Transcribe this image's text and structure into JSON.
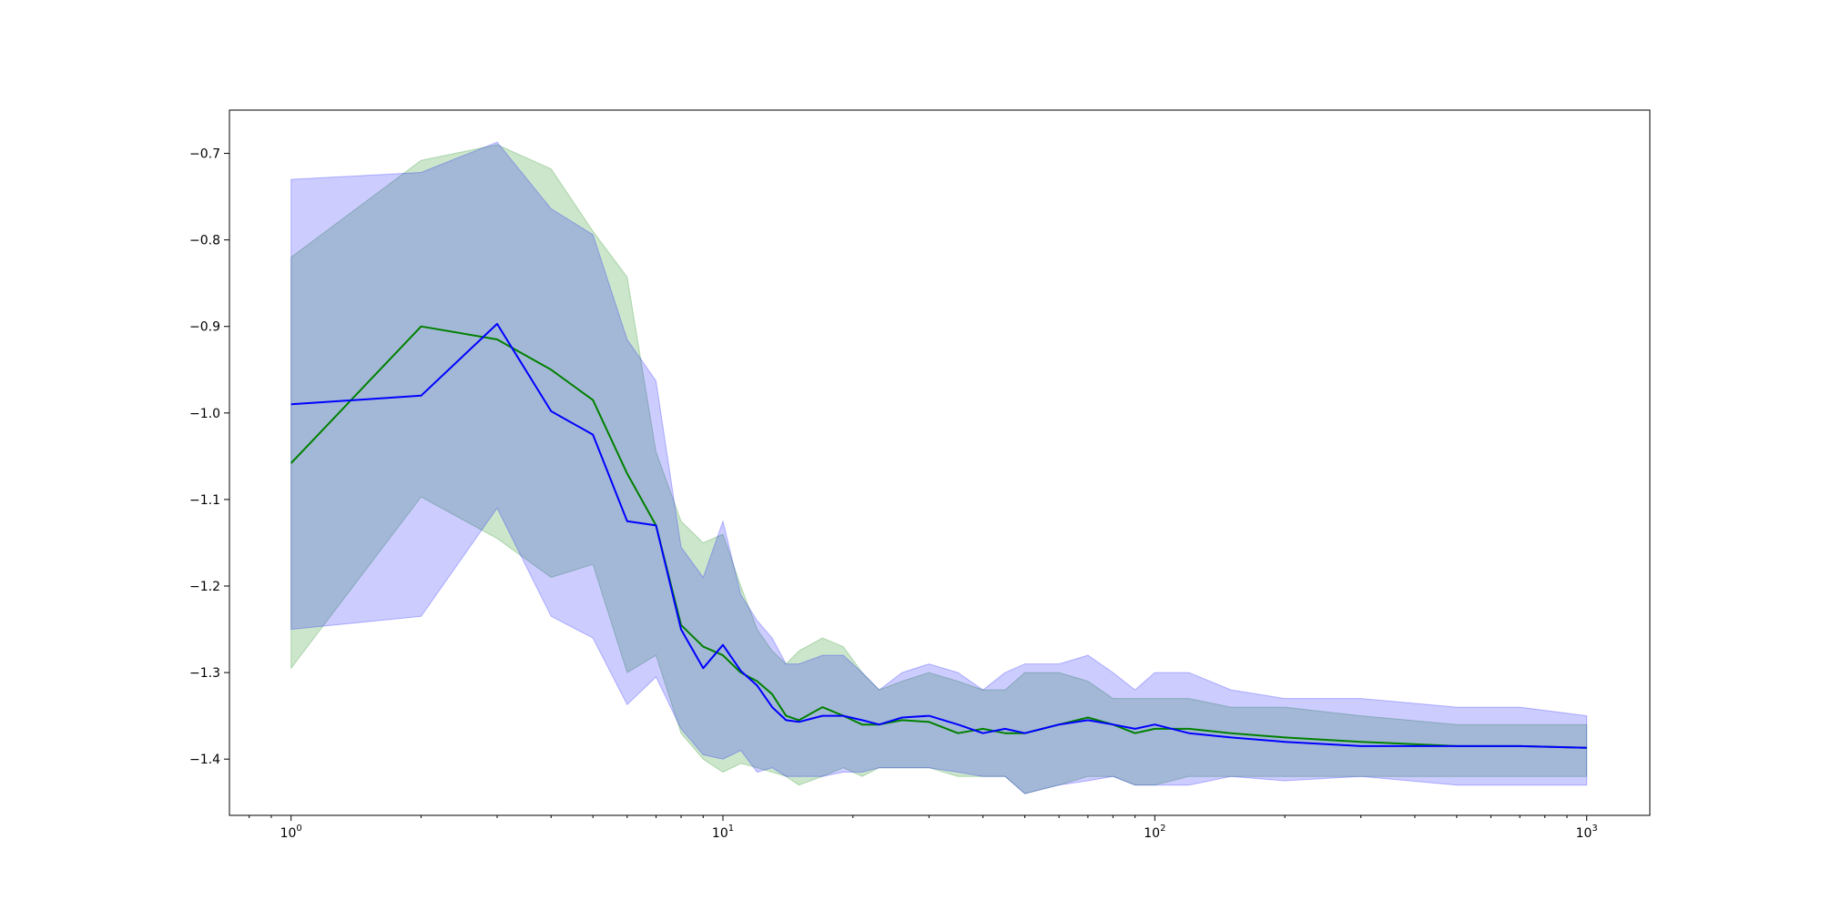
{
  "chart_data": {
    "type": "line",
    "x_scale": "log",
    "xlim": [
      0.72,
      1400
    ],
    "ylim": [
      -1.465,
      -0.65
    ],
    "grid": false,
    "legend": "none",
    "x_major_ticks": [
      1,
      10,
      100,
      1000
    ],
    "x_tick_labels": [
      {
        "base": "10",
        "exp": "0"
      },
      {
        "base": "10",
        "exp": "1"
      },
      {
        "base": "10",
        "exp": "2"
      },
      {
        "base": "10",
        "exp": "3"
      }
    ],
    "y_ticks": [
      -0.7,
      -0.8,
      -0.9,
      -1.0,
      -1.1,
      -1.2,
      -1.3,
      -1.4
    ],
    "y_tick_labels": [
      "−0.7",
      "−0.8",
      "−0.9",
      "−1.0",
      "−1.1",
      "−1.2",
      "−1.3",
      "−1.4"
    ],
    "colors": {
      "green_line": "#008000",
      "blue_line": "#0000ff",
      "green_band": "#008000",
      "blue_band": "#0000ff"
    },
    "series": [
      {
        "color": "green",
        "x": [
          1,
          2,
          3,
          4,
          5,
          6,
          7,
          8,
          9,
          10,
          11,
          12,
          13,
          14,
          15,
          17,
          19,
          21,
          23,
          26,
          30,
          35,
          40,
          45,
          50,
          60,
          70,
          80,
          90,
          100,
          120,
          150,
          200,
          300,
          500,
          700,
          1000
        ],
        "y": [
          -1.058,
          -0.9,
          -0.915,
          -0.95,
          -0.985,
          -1.07,
          -1.13,
          -1.245,
          -1.27,
          -1.28,
          -1.3,
          -1.31,
          -1.325,
          -1.35,
          -1.355,
          -1.34,
          -1.35,
          -1.36,
          -1.36,
          -1.355,
          -1.357,
          -1.37,
          -1.365,
          -1.37,
          -1.37,
          -1.36,
          -1.352,
          -1.36,
          -1.37,
          -1.365,
          -1.365,
          -1.37,
          -1.375,
          -1.38,
          -1.385,
          -1.385,
          -1.387
        ],
        "lower": [
          -1.295,
          -1.097,
          -1.145,
          -1.19,
          -1.175,
          -1.3,
          -1.28,
          -1.37,
          -1.4,
          -1.415,
          -1.405,
          -1.41,
          -1.415,
          -1.42,
          -1.43,
          -1.42,
          -1.41,
          -1.42,
          -1.41,
          -1.41,
          -1.41,
          -1.42,
          -1.42,
          -1.42,
          -1.44,
          -1.43,
          -1.42,
          -1.42,
          -1.43,
          -1.43,
          -1.42,
          -1.42,
          -1.42,
          -1.42,
          -1.42,
          -1.42,
          -1.42
        ],
        "upper": [
          -0.82,
          -0.708,
          -0.69,
          -0.718,
          -0.79,
          -0.843,
          -1.045,
          -1.125,
          -1.15,
          -1.14,
          -1.2,
          -1.25,
          -1.275,
          -1.29,
          -1.275,
          -1.26,
          -1.27,
          -1.3,
          -1.32,
          -1.31,
          -1.3,
          -1.31,
          -1.32,
          -1.32,
          -1.3,
          -1.3,
          -1.31,
          -1.33,
          -1.33,
          -1.33,
          -1.33,
          -1.34,
          -1.34,
          -1.35,
          -1.36,
          -1.36,
          -1.36
        ]
      },
      {
        "color": "blue",
        "x": [
          1,
          2,
          3,
          4,
          5,
          6,
          7,
          8,
          9,
          10,
          11,
          12,
          13,
          14,
          15,
          17,
          19,
          21,
          23,
          26,
          30,
          35,
          40,
          45,
          50,
          60,
          70,
          80,
          90,
          100,
          120,
          150,
          200,
          300,
          500,
          700,
          1000
        ],
        "y": [
          -0.99,
          -0.98,
          -0.897,
          -0.998,
          -1.025,
          -1.125,
          -1.13,
          -1.25,
          -1.295,
          -1.268,
          -1.298,
          -1.315,
          -1.34,
          -1.355,
          -1.357,
          -1.35,
          -1.35,
          -1.355,
          -1.36,
          -1.352,
          -1.35,
          -1.36,
          -1.37,
          -1.365,
          -1.37,
          -1.36,
          -1.355,
          -1.36,
          -1.365,
          -1.36,
          -1.37,
          -1.375,
          -1.38,
          -1.385,
          -1.385,
          -1.385,
          -1.387
        ],
        "lower": [
          -1.25,
          -1.235,
          -1.11,
          -1.235,
          -1.26,
          -1.337,
          -1.305,
          -1.365,
          -1.395,
          -1.4,
          -1.39,
          -1.415,
          -1.41,
          -1.42,
          -1.42,
          -1.42,
          -1.415,
          -1.415,
          -1.41,
          -1.41,
          -1.41,
          -1.415,
          -1.42,
          -1.42,
          -1.44,
          -1.43,
          -1.425,
          -1.42,
          -1.43,
          -1.43,
          -1.43,
          -1.42,
          -1.425,
          -1.42,
          -1.43,
          -1.43,
          -1.43
        ],
        "upper": [
          -0.73,
          -0.722,
          -0.687,
          -0.764,
          -0.794,
          -0.915,
          -0.963,
          -1.155,
          -1.19,
          -1.125,
          -1.21,
          -1.24,
          -1.26,
          -1.29,
          -1.29,
          -1.28,
          -1.28,
          -1.3,
          -1.32,
          -1.3,
          -1.29,
          -1.3,
          -1.32,
          -1.3,
          -1.29,
          -1.29,
          -1.28,
          -1.3,
          -1.32,
          -1.3,
          -1.3,
          -1.32,
          -1.33,
          -1.33,
          -1.34,
          -1.34,
          -1.35
        ]
      }
    ]
  }
}
